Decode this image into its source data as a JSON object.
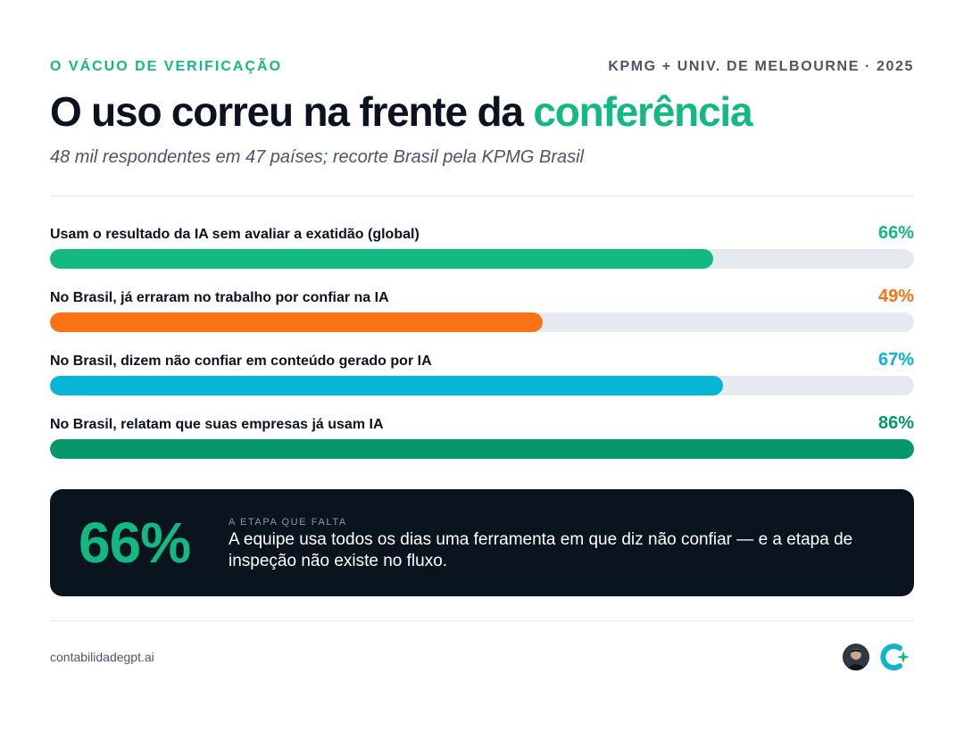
{
  "header": {
    "kicker": "O VÁCUO DE VERIFICAÇÃO",
    "source": "KPMG + UNIV. DE MELBOURNE · 2025",
    "title_main": "O uso correu na frente da ",
    "title_accent": "conferência",
    "subtitle": "48 mil respondentes em 47 países; recorte Brasil pela KPMG Brasil"
  },
  "chart_data": {
    "type": "bar",
    "orientation": "horizontal",
    "categories": [
      "Usam o resultado da IA sem avaliar a exatidão (global)",
      "No Brasil, já erraram no trabalho por confiar na IA",
      "No Brasil, dizem não confiar em conteúdo gerado por IA",
      "No Brasil, relatam que suas empresas já usam IA"
    ],
    "values": [
      66,
      49,
      67,
      86
    ],
    "value_labels": [
      "66%",
      "49%",
      "67%",
      "86%"
    ],
    "colors": [
      "#12b981",
      "#f97316",
      "#06b6d4",
      "#059669"
    ],
    "xlim": [
      0,
      86
    ],
    "grid": false,
    "legend": "none"
  },
  "callout": {
    "big_value": "66%",
    "kicker": "A ETAPA QUE FALTA",
    "text": "A equipe usa todos os dias uma ferramenta em que diz não confiar — e a etapa de inspeção não existe no fluxo."
  },
  "footer": {
    "url": "contabilidadegpt.ai",
    "icons": [
      "avatar",
      "brand-logo-icon"
    ]
  },
  "colors": {
    "accent": "#12b981",
    "dark_panel": "#0a141f",
    "track": "#e5e9f0"
  }
}
